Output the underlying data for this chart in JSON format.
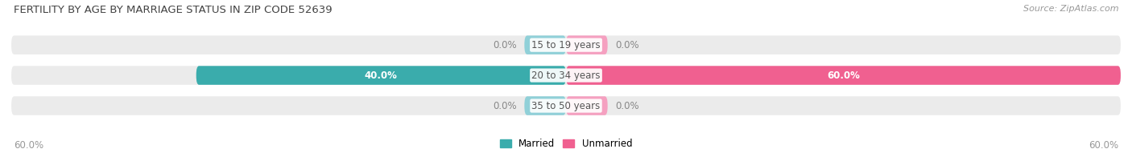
{
  "title": "FERTILITY BY AGE BY MARRIAGE STATUS IN ZIP CODE 52639",
  "source": "Source: ZipAtlas.com",
  "categories": [
    "15 to 19 years",
    "20 to 34 years",
    "35 to 50 years"
  ],
  "married_values": [
    0.0,
    40.0,
    0.0
  ],
  "unmarried_values": [
    0.0,
    60.0,
    0.0
  ],
  "married_color": "#3AACAC",
  "unmarried_color": "#F06090",
  "married_zero_color": "#90D0D8",
  "unmarried_zero_color": "#F5A0C0",
  "bar_bg_color": "#EBEBEB",
  "bar_height": 0.62,
  "xlim_left": -60,
  "xlim_right": 60,
  "title_fontsize": 9.5,
  "source_fontsize": 8,
  "label_fontsize": 8.5,
  "category_fontsize": 8.5,
  "axis_label_fontsize": 8.5,
  "bg_color": "#FFFFFF",
  "bottom_left_label": "60.0%",
  "bottom_right_label": "60.0%",
  "zero_bar_width": 4.5,
  "value_label_color_white": "#FFFFFF",
  "value_label_color_dark": "#888888"
}
